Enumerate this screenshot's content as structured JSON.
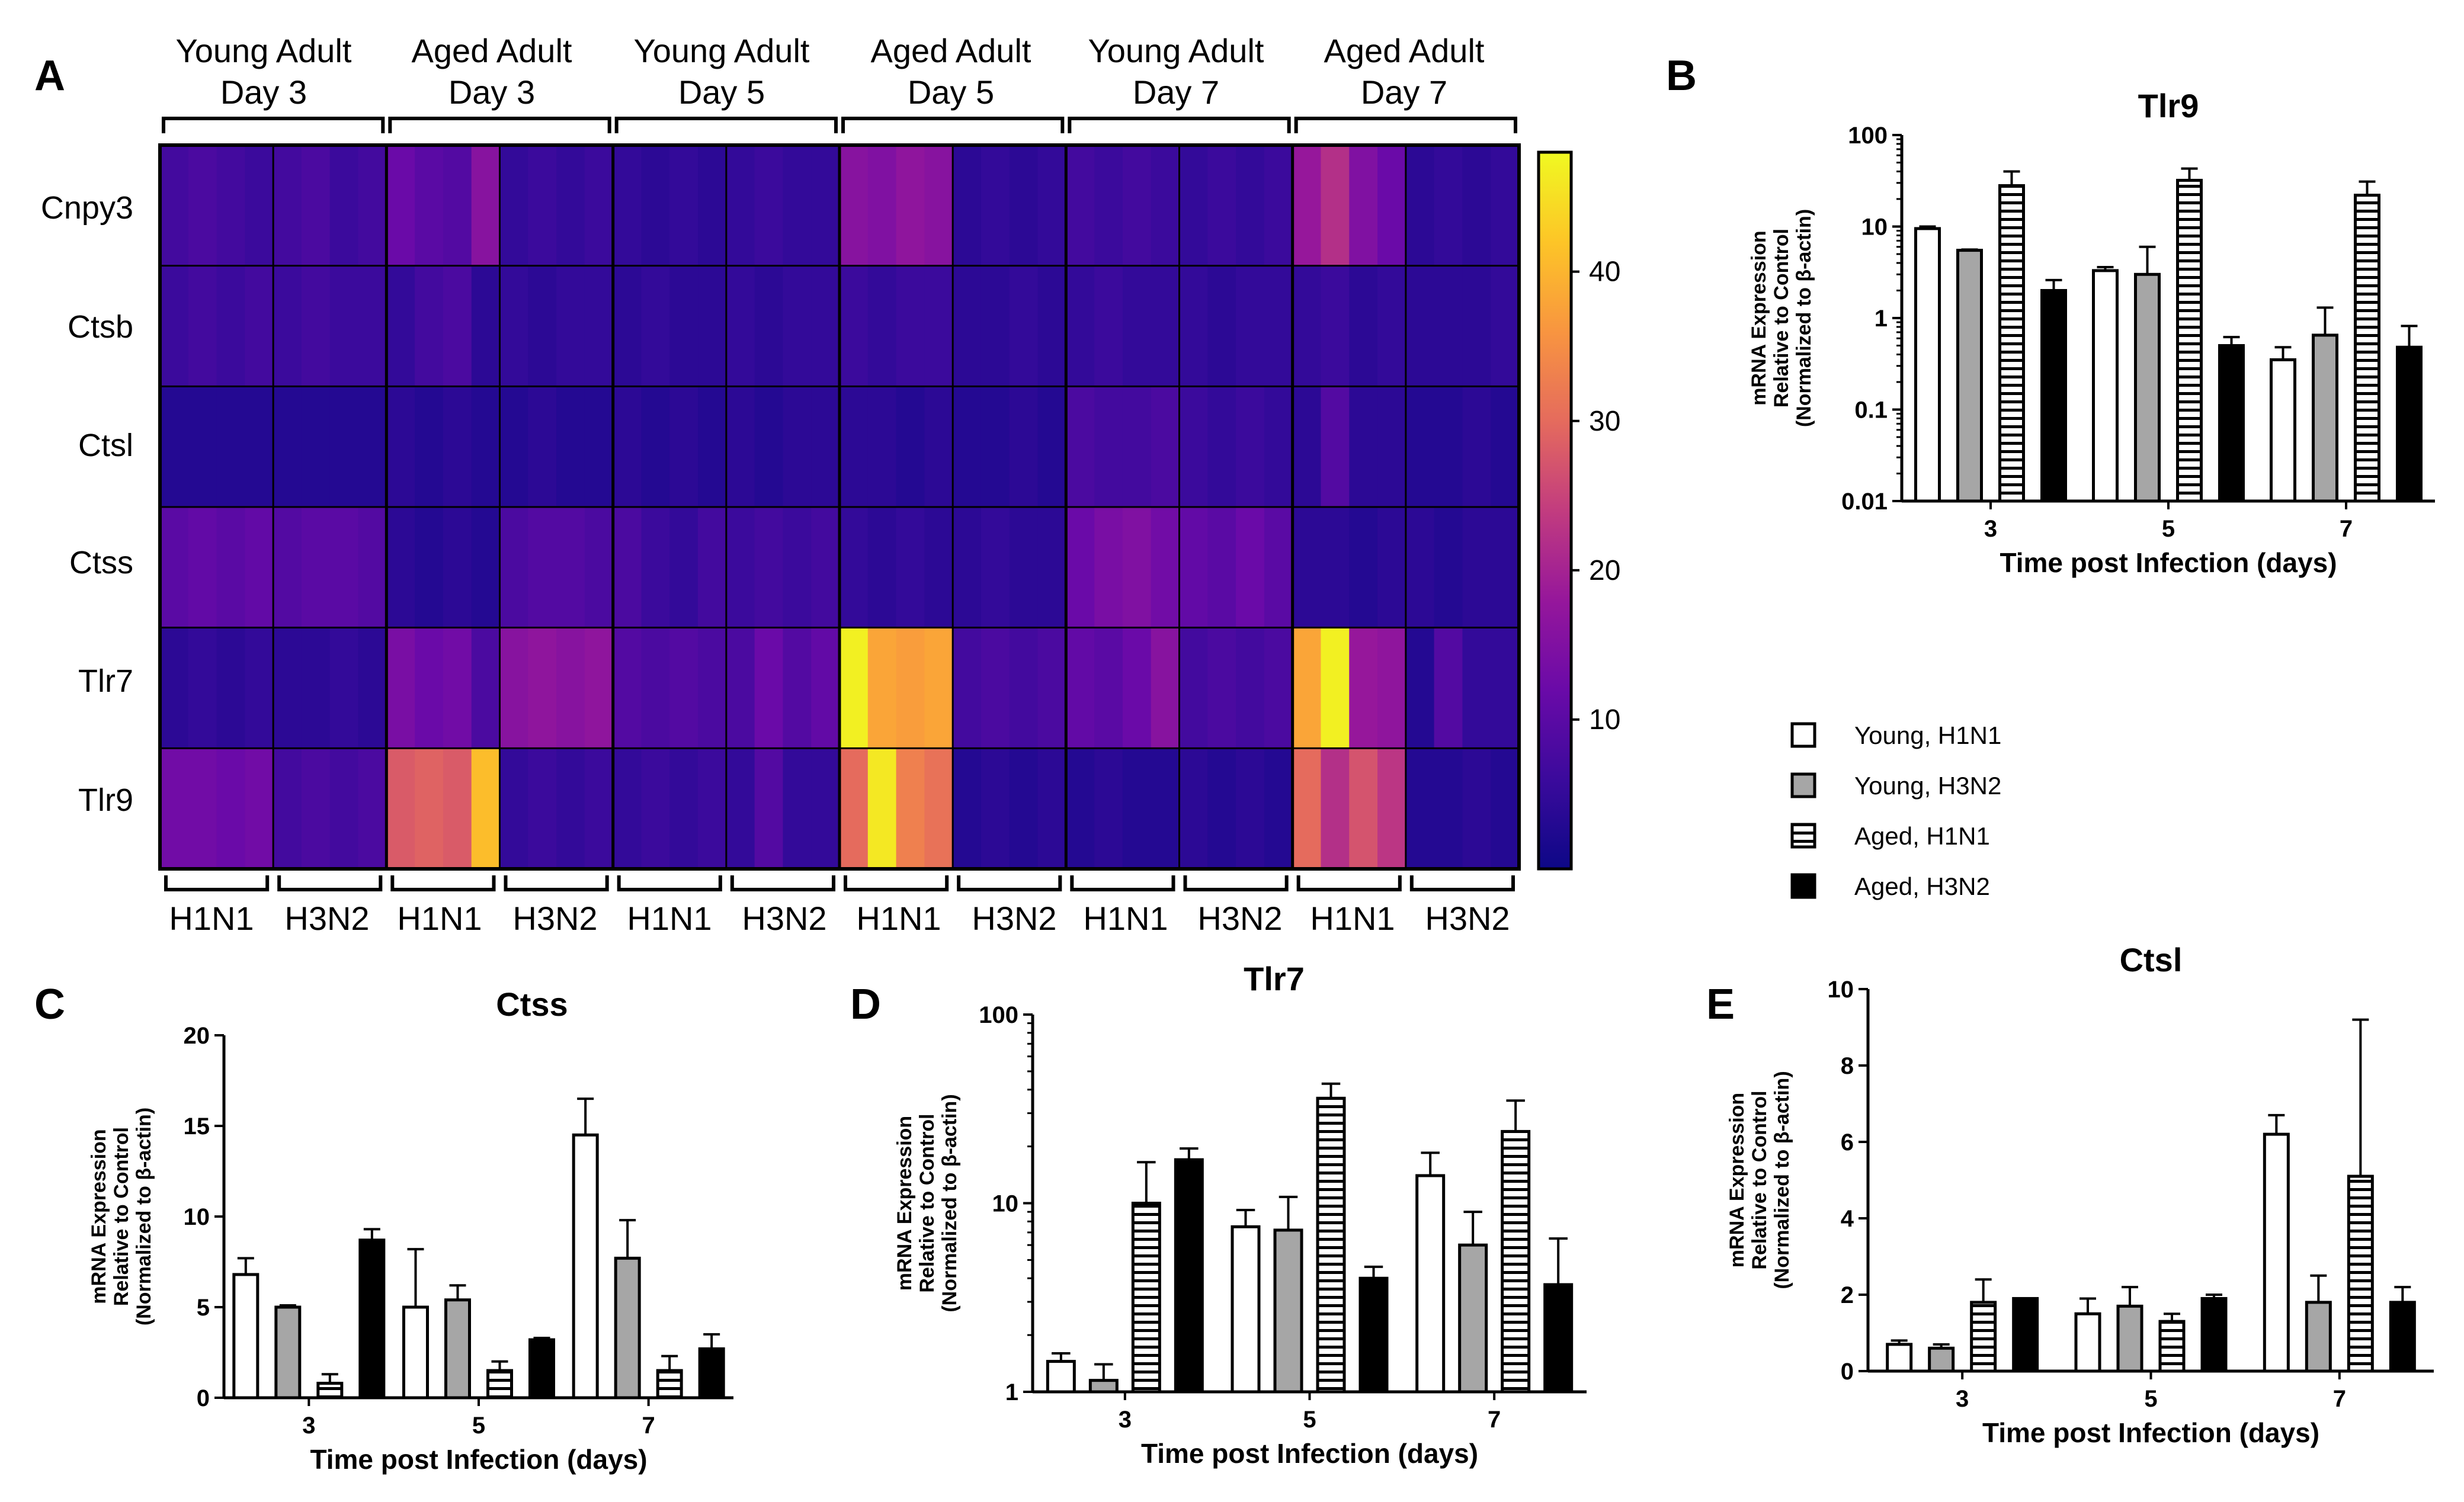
{
  "panel_letters": [
    "A",
    "B",
    "C",
    "D",
    "E"
  ],
  "colors": {
    "young_h1n1": "#ffffff",
    "young_h3n2": "#a6a6a6",
    "aged_h1n1": "hatched",
    "aged_h3n2": "#000000",
    "colormap": [
      "#0d0887",
      "#3b0a9c",
      "#6a0aa8",
      "#96179b",
      "#c23c7f",
      "#e56b5d",
      "#f89540",
      "#fdc527",
      "#f0f921"
    ]
  },
  "legend": [
    "Young, H1N1",
    "Young, H3N2",
    "Aged, H1N1",
    "Aged, H3N2"
  ],
  "chart_data": [
    {
      "panel": "A",
      "type": "heatmap",
      "group_headers": [
        [
          "Young Adult",
          "Day 3"
        ],
        [
          "Aged Adult",
          "Day 3"
        ],
        [
          "Young Adult",
          "Day 5"
        ],
        [
          "Aged Adult",
          "Day 5"
        ],
        [
          "Young Adult",
          "Day 7"
        ],
        [
          "Aged Adult",
          "Day 7"
        ]
      ],
      "virus_labels": [
        "H1N1",
        "H3N2",
        "H1N1",
        "H3N2",
        "H1N1",
        "H3N2",
        "H1N1",
        "H3N2",
        "H1N1",
        "H3N2",
        "H1N1",
        "H3N2"
      ],
      "genes": [
        "Cnpy3",
        "Ctsb",
        "Ctsl",
        "Ctss",
        "Tlr7",
        "Tlr9"
      ],
      "values": [
        [
          [
            7,
            8,
            7,
            6
          ],
          [
            7,
            8,
            6,
            7
          ],
          [
            12,
            10,
            9,
            16
          ],
          [
            5,
            6,
            5,
            6
          ],
          [
            5,
            4,
            5,
            4
          ],
          [
            5,
            6,
            5,
            5
          ],
          [
            16,
            15,
            17,
            16
          ],
          [
            4,
            5,
            4,
            5
          ],
          [
            7,
            6,
            7,
            6
          ],
          [
            5,
            6,
            5,
            6
          ],
          [
            18,
            22,
            15,
            12
          ],
          [
            4,
            5,
            4,
            5
          ]
        ],
        [
          [
            6,
            7,
            6,
            7
          ],
          [
            6,
            7,
            6,
            6
          ],
          [
            5,
            7,
            8,
            4
          ],
          [
            5,
            4,
            5,
            5
          ],
          [
            4,
            5,
            4,
            4
          ],
          [
            5,
            4,
            5,
            5
          ],
          [
            6,
            5,
            6,
            6
          ],
          [
            4,
            4,
            5,
            4
          ],
          [
            5,
            6,
            5,
            5
          ],
          [
            5,
            4,
            5,
            5
          ],
          [
            5,
            6,
            4,
            5
          ],
          [
            4,
            4,
            4,
            5
          ]
        ],
        [
          [
            3,
            3,
            3,
            3
          ],
          [
            3,
            3,
            3,
            3
          ],
          [
            4,
            3,
            4,
            3
          ],
          [
            3,
            4,
            3,
            3
          ],
          [
            4,
            3,
            4,
            3
          ],
          [
            4,
            3,
            4,
            4
          ],
          [
            4,
            4,
            3,
            4
          ],
          [
            3,
            3,
            4,
            3
          ],
          [
            8,
            7,
            7,
            8
          ],
          [
            6,
            5,
            6,
            5
          ],
          [
            4,
            9,
            4,
            4
          ],
          [
            3,
            3,
            4,
            3
          ]
        ],
        [
          [
            10,
            11,
            10,
            11
          ],
          [
            9,
            10,
            10,
            9
          ],
          [
            4,
            3,
            4,
            3
          ],
          [
            8,
            9,
            9,
            8
          ],
          [
            8,
            6,
            5,
            7
          ],
          [
            6,
            7,
            6,
            7
          ],
          [
            5,
            4,
            5,
            4
          ],
          [
            4,
            5,
            4,
            4
          ],
          [
            12,
            14,
            15,
            13
          ],
          [
            11,
            10,
            12,
            10
          ],
          [
            4,
            4,
            3,
            4
          ],
          [
            4,
            3,
            4,
            4
          ]
        ],
        [
          [
            4,
            5,
            4,
            5
          ],
          [
            4,
            4,
            5,
            4
          ],
          [
            14,
            12,
            13,
            8
          ],
          [
            16,
            17,
            16,
            17
          ],
          [
            9,
            8,
            9,
            8
          ],
          [
            8,
            12,
            9,
            11
          ],
          [
            47,
            38,
            37,
            38
          ],
          [
            7,
            8,
            7,
            8
          ],
          [
            11,
            10,
            12,
            16
          ],
          [
            7,
            8,
            7,
            8
          ],
          [
            38,
            47,
            18,
            17
          ],
          [
            3,
            9,
            5,
            5
          ]
        ],
        [
          [
            13,
            13,
            12,
            13
          ],
          [
            7,
            8,
            7,
            8
          ],
          [
            28,
            29,
            28,
            41
          ],
          [
            5,
            6,
            5,
            6
          ],
          [
            5,
            6,
            5,
            6
          ],
          [
            5,
            9,
            5,
            5
          ],
          [
            30,
            46,
            33,
            31
          ],
          [
            3,
            4,
            3,
            4
          ],
          [
            3,
            4,
            3,
            3
          ],
          [
            4,
            3,
            4,
            3
          ],
          [
            30,
            22,
            27,
            23
          ],
          [
            3,
            3,
            4,
            3
          ]
        ]
      ],
      "colorbar_ticks": [
        10,
        20,
        30,
        40
      ],
      "colorbar_range": [
        0,
        48
      ]
    },
    {
      "panel": "B",
      "type": "bar",
      "title": "Tlr9",
      "scale": "log",
      "ylim": [
        0.01,
        100
      ],
      "ytick_labels": [
        "0.01",
        "0.1",
        "1",
        "10",
        "100"
      ],
      "categories": [
        "3",
        "5",
        "7"
      ],
      "xlabel": "Time post Infection (days)",
      "ylabel": [
        "mRNA Expression",
        "Relative to Control",
        "(Normalized to β-actin)"
      ],
      "series": [
        {
          "name": "Young, H1N1",
          "values": [
            9.5,
            3.3,
            0.35
          ],
          "errors": [
            10,
            3.6,
            0.48
          ]
        },
        {
          "name": "Young, H3N2",
          "values": [
            5.5,
            3.0,
            0.65
          ],
          "errors": [
            5.6,
            6.0,
            1.3
          ]
        },
        {
          "name": "Aged, H1N1",
          "values": [
            28,
            32,
            22
          ],
          "errors": [
            40,
            43,
            31
          ]
        },
        {
          "name": "Aged, H3N2",
          "values": [
            2.0,
            0.5,
            0.48
          ],
          "errors": [
            2.6,
            0.62,
            0.82
          ]
        }
      ]
    },
    {
      "panel": "C",
      "type": "bar",
      "title": "Ctss",
      "scale": "linear",
      "ylim": [
        0,
        20
      ],
      "ytick_labels": [
        "0",
        "5",
        "10",
        "15",
        "20"
      ],
      "categories": [
        "3",
        "5",
        "7"
      ],
      "xlabel": "Time post Infection (days)",
      "ylabel": [
        "mRNA Expression",
        "Relative to Control",
        "(Normalized to β-actin)"
      ],
      "series": [
        {
          "name": "Young, H1N1",
          "values": [
            6.8,
            5.0,
            14.5
          ],
          "errors": [
            7.7,
            8.2,
            16.5
          ]
        },
        {
          "name": "Young, H3N2",
          "values": [
            5.0,
            5.4,
            7.7
          ],
          "errors": [
            5.1,
            6.2,
            9.8
          ]
        },
        {
          "name": "Aged, H1N1",
          "values": [
            0.8,
            1.5,
            1.5
          ],
          "errors": [
            1.3,
            2.0,
            2.3
          ]
        },
        {
          "name": "Aged, H3N2",
          "values": [
            8.7,
            3.2,
            2.7
          ],
          "errors": [
            9.3,
            3.3,
            3.5
          ]
        }
      ]
    },
    {
      "panel": "D",
      "type": "bar",
      "title": "Tlr7",
      "scale": "log",
      "ylim": [
        1,
        100
      ],
      "ytick_labels": [
        "1",
        "10",
        "100"
      ],
      "categories": [
        "3",
        "5",
        "7"
      ],
      "xlabel": "Time post Infection (days)",
      "ylabel": [
        "mRNA Expression",
        "Relative to Control",
        "(Normalized to β-actin)"
      ],
      "series": [
        {
          "name": "Young, H1N1",
          "values": [
            1.45,
            7.5,
            14
          ],
          "errors": [
            1.6,
            9.2,
            18.5
          ]
        },
        {
          "name": "Young, H3N2",
          "values": [
            1.15,
            7.2,
            6.0
          ],
          "errors": [
            1.4,
            10.8,
            9.0
          ]
        },
        {
          "name": "Aged, H1N1",
          "values": [
            10,
            36,
            24
          ],
          "errors": [
            16.5,
            43,
            35
          ]
        },
        {
          "name": "Aged, H3N2",
          "values": [
            17,
            4.0,
            3.7
          ],
          "errors": [
            19.5,
            4.6,
            6.5
          ]
        }
      ]
    },
    {
      "panel": "E",
      "type": "bar",
      "title": "Ctsl",
      "scale": "linear",
      "ylim": [
        0,
        10
      ],
      "ytick_labels": [
        "0",
        "2",
        "4",
        "6",
        "8",
        "10"
      ],
      "categories": [
        "3",
        "5",
        "7"
      ],
      "xlabel": "Time post Infection (days)",
      "ylabel": [
        "mRNA Expression",
        "Relative to Control",
        "(Normalized to β-actin)"
      ],
      "series": [
        {
          "name": "Young, H1N1",
          "values": [
            0.7,
            1.5,
            6.2
          ],
          "errors": [
            0.8,
            1.9,
            6.7
          ]
        },
        {
          "name": "Young, H3N2",
          "values": [
            0.6,
            1.7,
            1.8
          ],
          "errors": [
            0.7,
            2.2,
            2.5
          ]
        },
        {
          "name": "Aged, H1N1",
          "values": [
            1.8,
            1.3,
            5.1
          ],
          "errors": [
            2.4,
            1.5,
            9.2
          ]
        },
        {
          "name": "Aged, H3N2",
          "values": [
            1.9,
            1.9,
            1.8
          ],
          "errors": [
            1.9,
            2.0,
            2.2
          ]
        }
      ]
    }
  ]
}
